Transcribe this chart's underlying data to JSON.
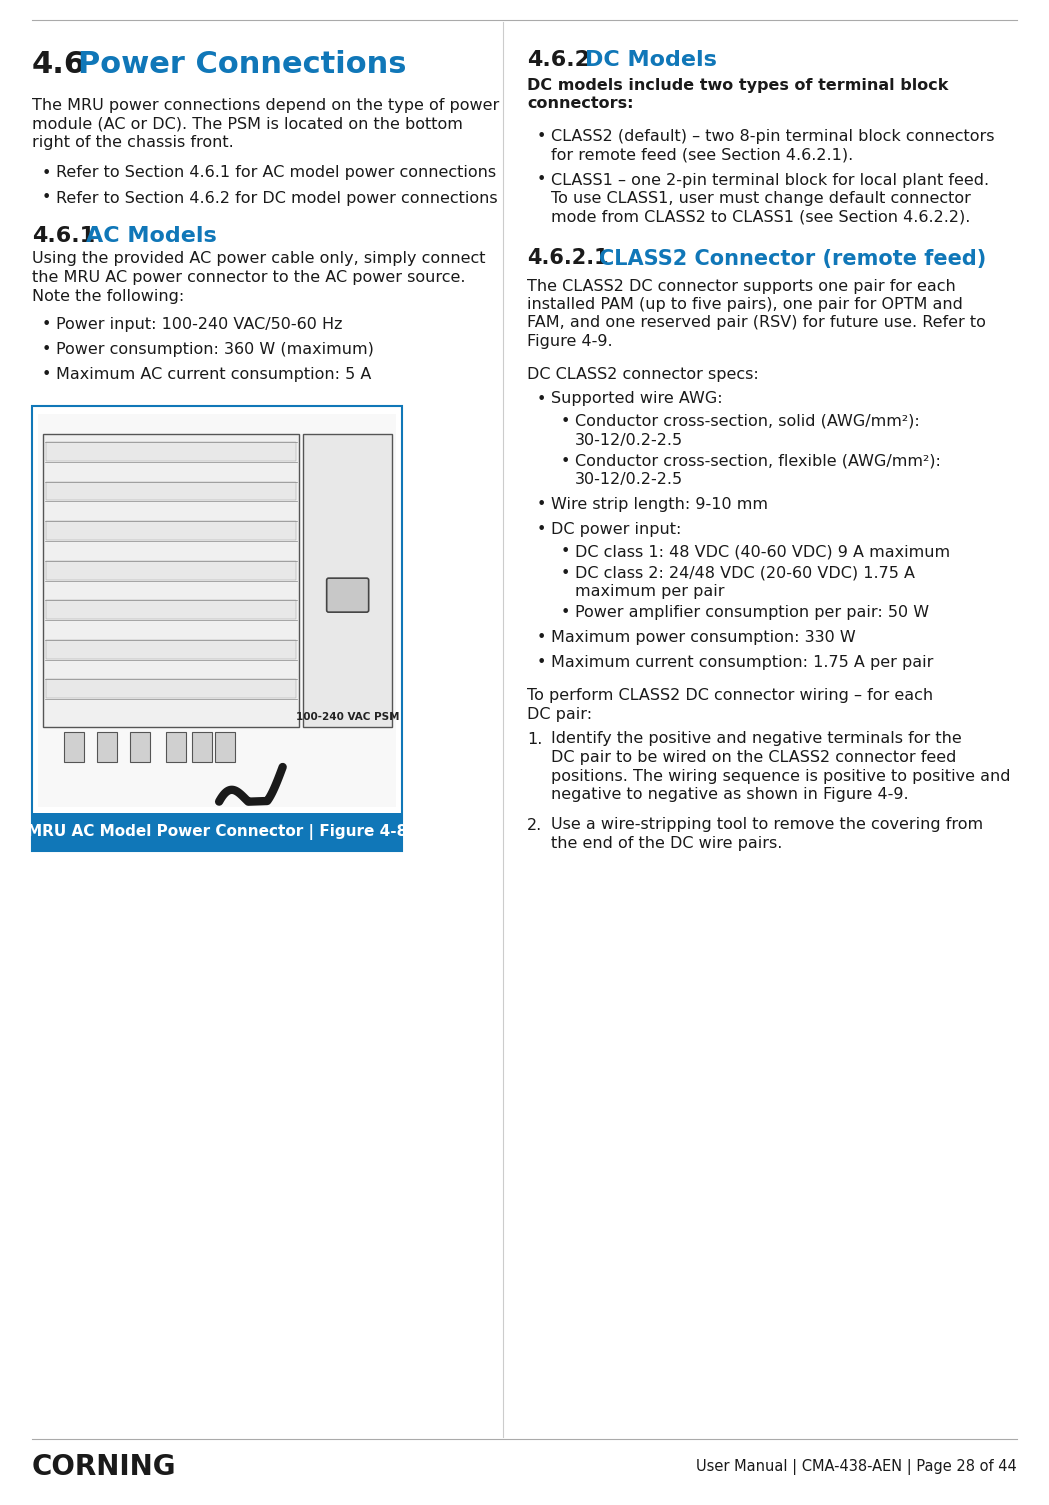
{
  "page_bg": "#ffffff",
  "blue_heading_color": "#1077b8",
  "black_text_color": "#1a1a1a",
  "caption_bg_color": "#1077b8",
  "caption_text_color": "#ffffff",
  "figure_border_color": "#1077b8",
  "divider_color": "#aaaaaa",
  "left_col": {
    "section_46_num": "4.6",
    "section_46_title": "Power Connections",
    "section_46_body": "The MRU power connections depend on the type of power\nmodule (AC or DC). The PSM is located on the bottom\nright of the chassis front.",
    "bullet1": "Refer to Section 4.6.1 for AC model power connections",
    "bullet2": "Refer to Section 4.6.2 for DC model power connections",
    "section_461_num": "4.6.1",
    "section_461_title": "AC Models",
    "section_461_body": "Using the provided AC power cable only, simply connect\nthe MRU AC power connector to the AC power source.\nNote the following:",
    "ac_bullet1": "Power input: 100-240 VAC/50-60 Hz",
    "ac_bullet2": "Power consumption: 360 W (maximum)",
    "ac_bullet3": "Maximum AC current consumption: 5 A",
    "figure_caption": "MRU AC Model Power Connector | Figure 4-8"
  },
  "right_col": {
    "section_462_num": "4.6.2",
    "section_462_title": "DC Models",
    "section_462_bold_line1": "DC models include two types of terminal block",
    "section_462_bold_line2": "connectors:",
    "dc_bullet1_line1": "CLASS2 (default) – two 8-pin terminal block connectors",
    "dc_bullet1_line2": "for remote feed (see Section 4.6.2.1).",
    "dc_bullet2_line1": "CLASS1 – one 2-pin terminal block for local plant feed.",
    "dc_bullet2_line2": "To use CLASS1, user must change default connector",
    "dc_bullet2_line3": "mode from CLASS2 to CLASS1 (see Section 4.6.2.2).",
    "section_4621_num": "4.6.2.1",
    "section_4621_title": "CLASS2 Connector (remote feed)",
    "body3_line1": "The CLASS2 DC connector supports one pair for each",
    "body3_line2": "installed PAM (up to five pairs), one pair for OPTM and",
    "body3_line3": "FAM, and one reserved pair (RSV) for future use. Refer to",
    "body3_line4": "Figure 4-9.",
    "specs_label": "DC CLASS2 connector specs:",
    "spec_bullet1": "Supported wire AWG:",
    "spec_sub1_line1": "Conductor cross-section, solid (AWG/mm²):",
    "spec_sub1_line2": "30-12/0.2-2.5",
    "spec_sub2_line1": "Conductor cross-section, flexible (AWG/mm²):",
    "spec_sub2_line2": "30-12/0.2-2.5",
    "spec_bullet2": "Wire strip length: 9-10 mm",
    "spec_bullet3": "DC power input:",
    "spec_sub3": "DC class 1: 48 VDC (40-60 VDC) 9 A maximum",
    "spec_sub4_line1": "DC class 2: 24/48 VDC (20-60 VDC) 1.75 A",
    "spec_sub4_line2": "maximum per pair",
    "spec_sub5": "Power amplifier consumption per pair: 50 W",
    "spec_bullet4": "Maximum power consumption: 330 W",
    "spec_bullet5": "Maximum current consumption: 1.75 A per pair",
    "wiring_intro_line1": "To perform CLASS2 DC connector wiring – for each",
    "wiring_intro_line2": "DC pair:",
    "step1_num": "1.",
    "step1_line1": "Identify the positive and negative terminals for the",
    "step1_line2": "DC pair to be wired on the CLASS2 connector feed",
    "step1_line3": "positions. The wiring sequence is positive to positive and",
    "step1_line4": "negative to negative as shown in Figure 4-9.",
    "step2_num": "2.",
    "step2_line1": "Use a wire-stripping tool to remove the covering from",
    "step2_line2": "the end of the DC wire pairs."
  },
  "footer_left": "CORNING",
  "footer_right": "User Manual | CMA-438-AEN | Page 28 of 44"
}
